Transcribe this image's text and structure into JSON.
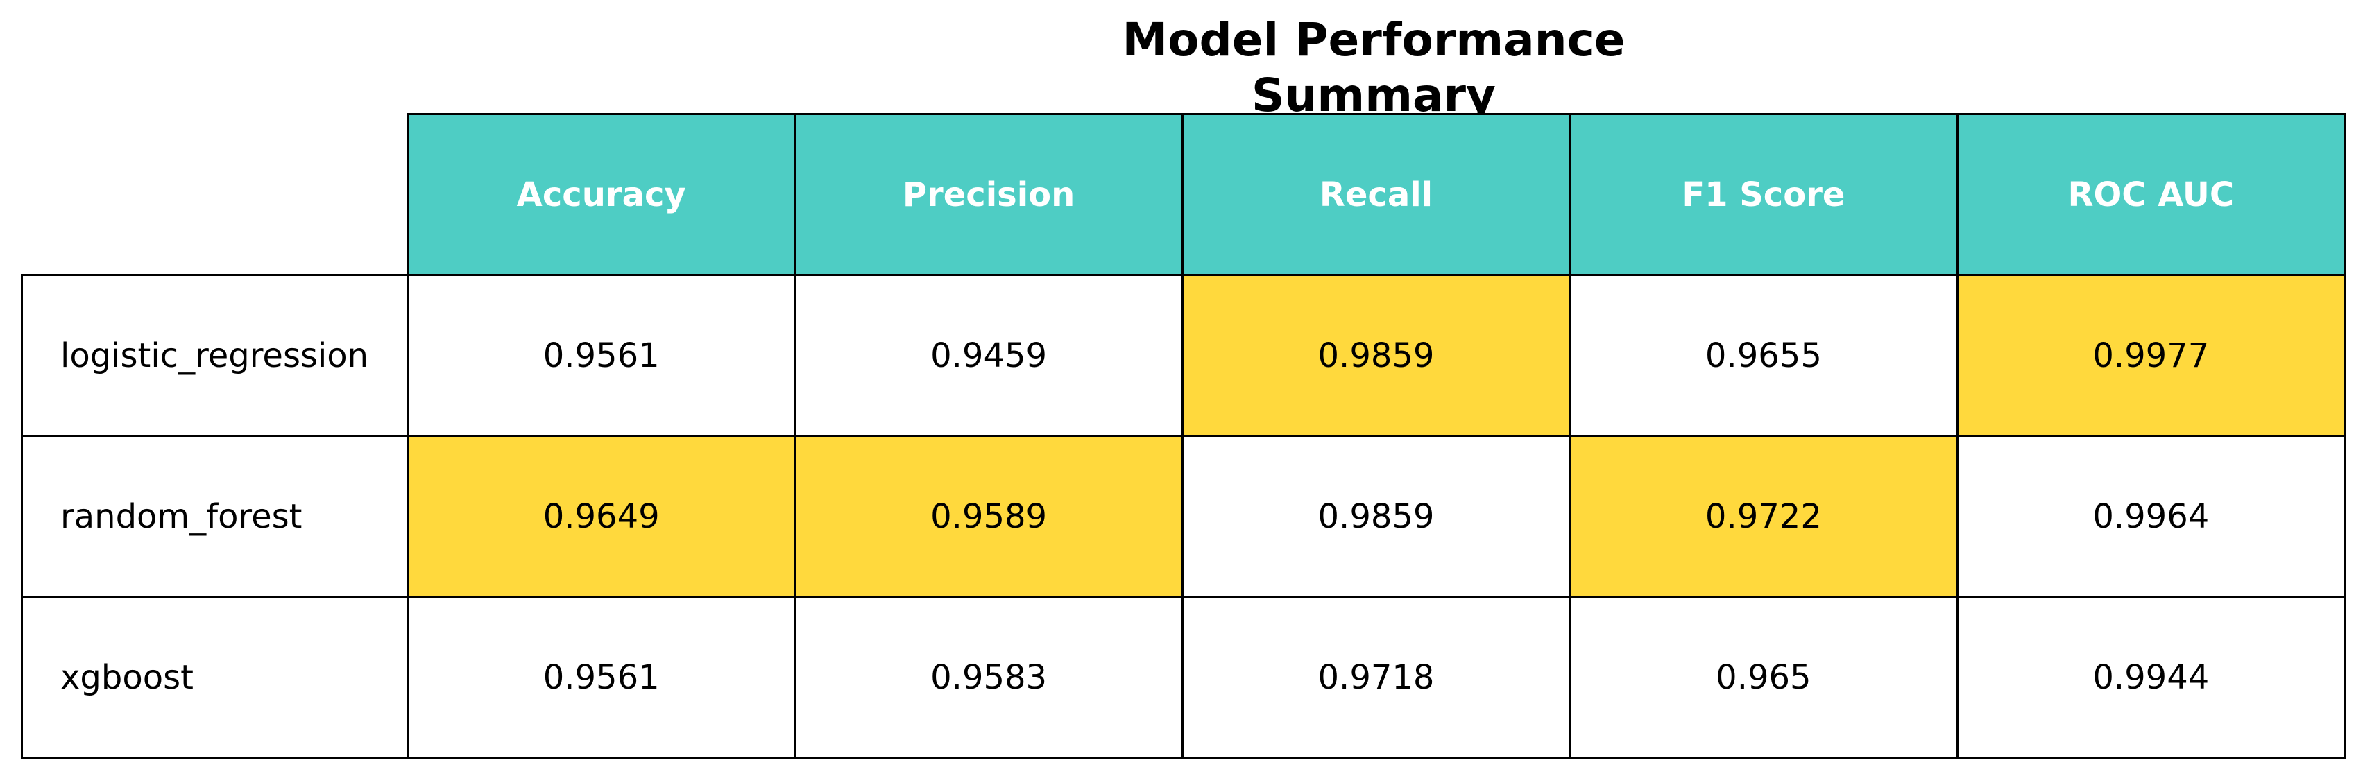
{
  "chart_data": {
    "type": "table",
    "title": "Model Performance Summary",
    "columns": [
      "Accuracy",
      "Precision",
      "Recall",
      "F1 Score",
      "ROC AUC"
    ],
    "rows": [
      {
        "label": "logistic_regression",
        "values": [
          "0.9561",
          "0.9459",
          "0.9859",
          "0.9655",
          "0.9977"
        ],
        "highlight": [
          false,
          false,
          true,
          false,
          true
        ]
      },
      {
        "label": "random_forest",
        "values": [
          "0.9649",
          "0.9589",
          "0.9859",
          "0.9722",
          "0.9964"
        ],
        "highlight": [
          true,
          true,
          false,
          true,
          false
        ]
      },
      {
        "label": "xgboost",
        "values": [
          "0.9561",
          "0.9583",
          "0.9718",
          "0.965",
          "0.9944"
        ],
        "highlight": [
          false,
          false,
          false,
          false,
          false
        ]
      }
    ]
  },
  "colors": {
    "header_bg": "#4ECDC4",
    "highlight_bg": "#FFD93D",
    "cell_bg": "#FFFFFF",
    "border": "#000000"
  }
}
